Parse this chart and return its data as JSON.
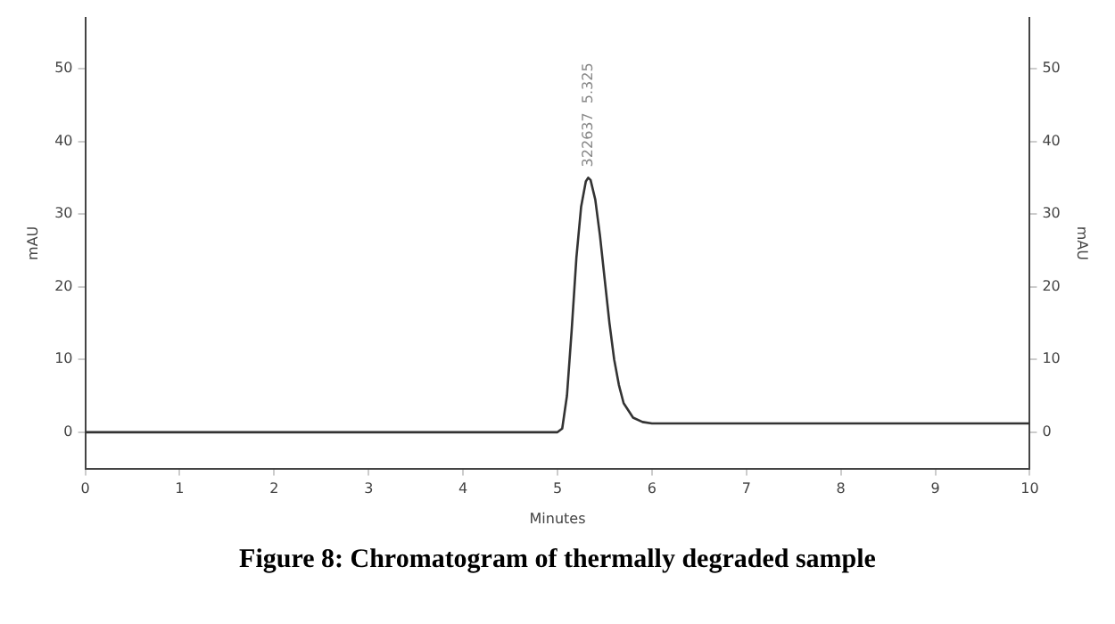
{
  "chart_data": {
    "type": "line",
    "title": "Figure 8: Chromatogram of thermally degraded sample",
    "xlabel": "Minutes",
    "ylabel": "mAU",
    "y2label": "mAU",
    "x": [
      0,
      5.0,
      5.05,
      5.1,
      5.15,
      5.2,
      5.25,
      5.3,
      5.325,
      5.35,
      5.4,
      5.45,
      5.5,
      5.55,
      5.6,
      5.65,
      5.7,
      5.8,
      5.9,
      6.0,
      10
    ],
    "series": [
      {
        "color": "#333333",
        "values": [
          0,
          0,
          0.5,
          5,
          14,
          24,
          31,
          34.5,
          35,
          34.7,
          32,
          27,
          21,
          15,
          10,
          6.5,
          4,
          2,
          1.4,
          1.2,
          1.2
        ]
      }
    ],
    "xlim": [
      0,
      10
    ],
    "xticks": [
      0,
      1,
      2,
      3,
      4,
      5,
      6,
      7,
      8,
      9,
      10
    ],
    "ylim": [
      -5,
      57
    ],
    "yticks": [
      0,
      10,
      20,
      30,
      40,
      50
    ],
    "y2lim": [
      -5,
      57
    ],
    "y2ticks": [
      0,
      10,
      20,
      30,
      40,
      50
    ],
    "annotations": [
      {
        "text": "322637  5.325",
        "x": 5.325,
        "y": 35
      }
    ],
    "grid": false,
    "legend": false,
    "marker": "none",
    "line_style": "solid"
  }
}
